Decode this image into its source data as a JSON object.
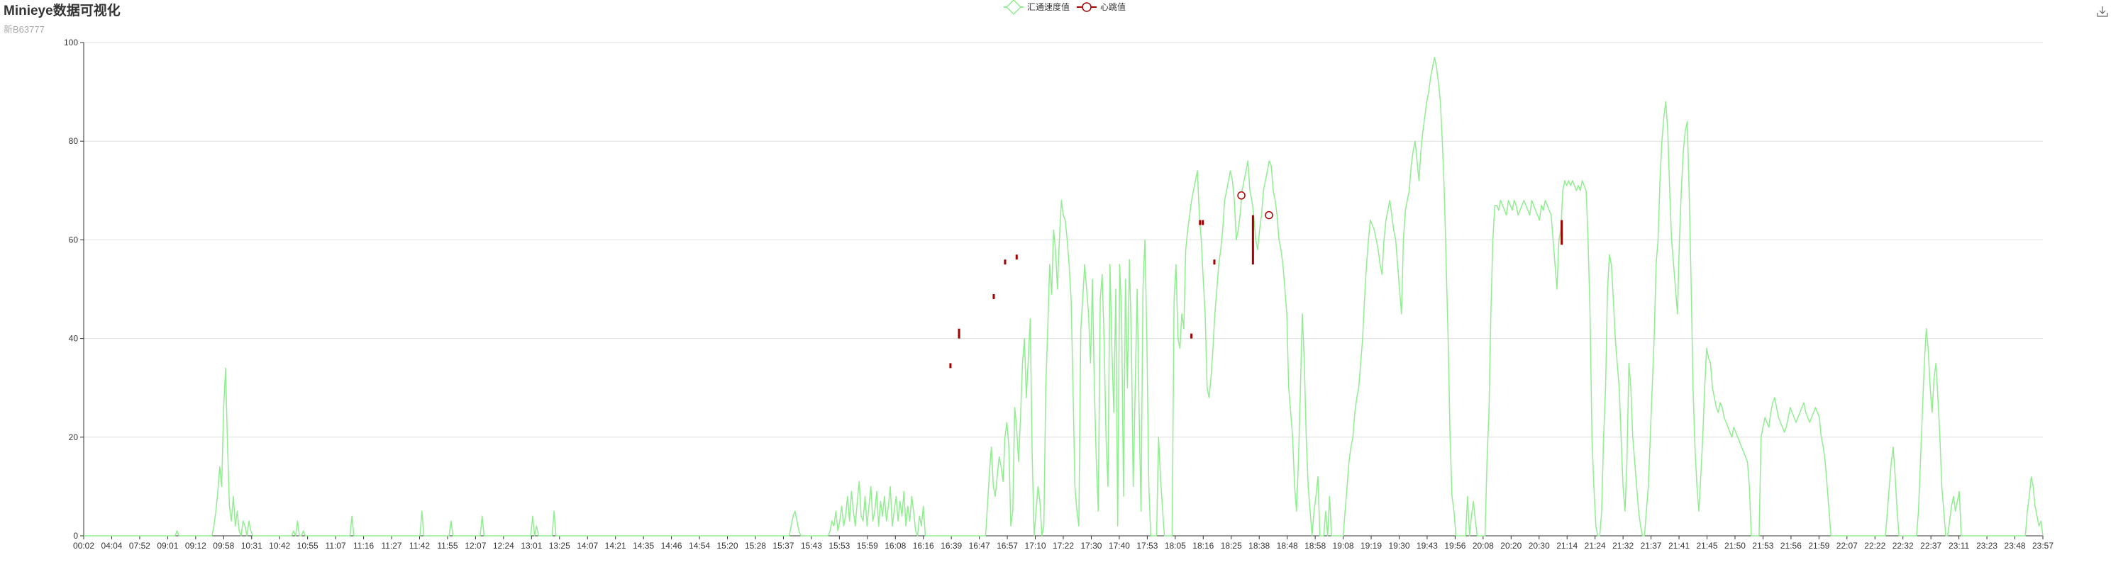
{
  "header": {
    "title": "Minieye数据可视化",
    "subtitle": "新B63777"
  },
  "toolbox": {
    "icon": "download-icon"
  },
  "colors": {
    "speed": "#90ee90",
    "heartbeat": "#a40000",
    "grid": "#e0e0e0",
    "axis": "#333333"
  },
  "chart_data": {
    "type": "line",
    "title": "Minieye数据可视化",
    "subtitle": "新B63777",
    "legend": [
      "汇通速度值",
      "心跳值"
    ],
    "legend_position": "top-center",
    "grid": true,
    "ylim": [
      0,
      100
    ],
    "yticks": [
      0,
      20,
      40,
      60,
      80,
      100
    ],
    "x_tick_labels": [
      "00:02",
      "04:04",
      "07:52",
      "09:01",
      "09:12",
      "09:58",
      "10:31",
      "10:42",
      "10:55",
      "11:07",
      "11:16",
      "11:27",
      "11:42",
      "11:55",
      "12:07",
      "12:24",
      "13:01",
      "13:25",
      "14:07",
      "14:21",
      "14:35",
      "14:46",
      "14:54",
      "15:20",
      "15:28",
      "15:37",
      "15:43",
      "15:53",
      "15:59",
      "16:08",
      "16:16",
      "16:39",
      "16:47",
      "16:57",
      "17:10",
      "17:22",
      "17:30",
      "17:40",
      "17:53",
      "18:05",
      "18:16",
      "18:25",
      "18:38",
      "18:48",
      "18:58",
      "19:08",
      "19:19",
      "19:30",
      "19:43",
      "19:56",
      "20:08",
      "20:20",
      "20:30",
      "21:14",
      "21:24",
      "21:32",
      "21:37",
      "21:41",
      "21:45",
      "21:50",
      "21:53",
      "21:56",
      "21:59",
      "22:07",
      "22:22",
      "22:32",
      "22:37",
      "23:11",
      "23:23",
      "23:48",
      "23:57"
    ],
    "series": [
      {
        "name": "汇通速度值",
        "type": "line",
        "values": [
          0,
          0,
          0,
          0,
          0,
          0,
          0,
          0,
          0,
          0,
          0,
          0,
          0,
          0,
          0,
          0,
          0,
          0,
          0,
          0,
          0,
          0,
          0,
          0,
          0,
          0,
          0,
          0,
          0,
          0,
          0,
          0,
          0,
          0,
          0,
          0,
          0,
          0,
          0,
          0,
          0,
          0,
          0,
          0,
          0,
          0,
          0,
          0,
          1,
          0,
          0,
          0,
          0,
          0,
          0,
          0,
          0,
          0,
          0,
          0,
          0,
          0,
          0,
          0,
          0,
          0,
          0,
          2,
          5,
          9,
          14,
          10,
          26,
          34,
          18,
          6,
          3,
          8,
          2,
          5,
          1,
          0,
          3,
          2,
          0,
          3,
          1,
          0,
          0,
          0,
          0,
          0,
          0,
          0,
          0,
          0,
          0,
          0,
          0,
          0,
          0,
          0,
          0,
          0,
          0,
          0,
          0,
          0,
          1,
          0,
          3,
          0,
          0,
          1,
          0,
          0,
          0,
          0,
          0,
          0,
          0,
          0,
          0,
          0,
          0,
          0,
          0,
          0,
          0,
          0,
          0,
          0,
          0,
          0,
          0,
          0,
          0,
          0,
          4,
          0,
          0,
          0,
          0,
          0,
          0,
          0,
          0,
          0,
          0,
          0,
          0,
          0,
          0,
          0,
          0,
          0,
          0,
          0,
          0,
          0,
          0,
          0,
          0,
          0,
          0,
          0,
          0,
          0,
          0,
          0,
          0,
          0,
          0,
          0,
          5,
          0,
          0,
          0,
          0,
          0,
          0,
          0,
          0,
          0,
          0,
          0,
          0,
          0,
          0,
          3,
          0,
          0,
          0,
          0,
          0,
          0,
          0,
          0,
          0,
          0,
          0,
          0,
          0,
          0,
          0,
          4,
          0,
          0,
          0,
          0,
          0,
          0,
          0,
          0,
          0,
          0,
          0,
          0,
          0,
          0,
          0,
          0,
          0,
          0,
          0,
          0,
          0,
          0,
          0,
          0,
          0,
          4,
          0,
          2,
          0,
          0,
          0,
          0,
          0,
          0,
          0,
          0,
          5,
          0,
          0,
          0,
          0,
          0,
          0,
          0,
          0,
          0,
          0,
          0,
          0,
          0,
          0,
          0,
          0,
          0,
          0,
          0,
          0,
          0,
          0,
          0,
          0,
          0,
          0,
          0,
          0,
          0,
          0,
          0,
          0,
          0,
          0,
          0,
          0,
          0,
          0,
          0,
          0,
          0,
          0,
          0,
          0,
          0,
          0,
          0,
          0,
          0,
          0,
          0,
          0,
          0,
          0,
          0,
          0,
          0,
          0,
          0,
          0,
          0,
          0,
          0,
          0,
          0,
          0,
          0,
          0,
          0,
          0,
          0,
          0,
          0,
          0,
          0,
          0,
          0,
          0,
          0,
          0,
          0,
          0,
          0,
          0,
          0,
          0,
          0,
          0,
          0,
          0,
          0,
          0,
          0,
          0,
          0,
          0,
          0,
          0,
          0,
          0,
          0,
          0,
          0,
          0,
          0,
          0,
          0,
          0,
          0,
          0,
          0,
          0,
          0,
          0,
          0,
          0,
          0,
          0,
          0,
          0,
          0,
          2,
          4,
          5,
          3,
          1,
          0,
          0,
          0,
          0,
          0,
          0,
          0,
          0,
          0,
          0,
          0,
          0,
          0,
          0,
          0,
          1,
          3,
          2,
          5,
          1,
          3,
          6,
          2,
          4,
          8,
          3,
          9,
          5,
          2,
          7,
          11,
          4,
          3,
          8,
          2,
          6,
          10,
          3,
          5,
          9,
          2,
          7,
          4,
          8,
          3,
          6,
          10,
          2,
          5,
          8,
          3,
          7,
          4,
          9,
          2,
          6,
          3,
          8,
          5,
          1,
          0,
          4,
          2,
          6,
          0,
          0,
          0,
          0,
          0,
          0,
          0,
          0,
          0,
          0,
          0,
          0,
          0,
          0,
          0,
          0,
          0,
          0,
          0,
          0,
          0,
          0,
          0,
          0,
          0,
          0,
          0,
          0,
          0,
          0,
          0,
          0,
          6,
          13,
          18,
          10,
          8,
          12,
          16,
          14,
          11,
          20,
          23,
          18,
          2,
          5,
          26,
          22,
          15,
          24,
          35,
          40,
          28,
          36,
          44,
          16,
          0,
          5,
          10,
          7,
          0,
          2,
          30,
          42,
          55,
          49,
          62,
          58,
          50,
          60,
          68,
          65,
          64,
          60,
          55,
          48,
          30,
          10,
          5,
          2,
          42,
          48,
          55,
          50,
          45,
          35,
          52,
          30,
          15,
          5,
          48,
          53,
          40,
          20,
          10,
          55,
          38,
          25,
          50,
          2,
          55,
          45,
          8,
          52,
          30,
          56,
          40,
          10,
          30,
          50,
          25,
          5,
          50,
          60,
          40,
          10,
          0,
          0,
          0,
          0,
          20,
          12,
          6,
          0,
          0,
          0,
          0,
          0,
          48,
          55,
          40,
          38,
          45,
          42,
          58,
          62,
          65,
          68,
          70,
          72,
          74,
          65,
          60,
          52,
          45,
          30,
          28,
          32,
          38,
          45,
          50,
          55,
          58,
          62,
          68,
          70,
          72,
          74,
          72,
          68,
          60,
          62,
          65,
          70,
          72,
          74,
          76,
          70,
          68,
          65,
          60,
          58,
          62,
          65,
          70,
          72,
          74,
          76,
          75,
          70,
          68,
          65,
          60,
          58,
          55,
          50,
          45,
          30,
          25,
          20,
          10,
          5,
          15,
          30,
          45,
          35,
          20,
          10,
          5,
          0,
          5,
          8,
          12,
          0,
          0,
          0,
          5,
          0,
          8,
          0,
          0,
          0,
          0,
          0,
          0,
          0,
          5,
          10,
          15,
          18,
          20,
          25,
          28,
          30,
          35,
          40,
          48,
          55,
          60,
          64,
          63,
          62,
          60,
          58,
          55,
          53,
          60,
          64,
          66,
          68,
          65,
          62,
          60,
          55,
          50,
          45,
          60,
          66,
          68,
          70,
          75,
          78,
          80,
          76,
          72,
          78,
          82,
          85,
          88,
          90,
          93,
          95,
          97,
          95,
          92,
          88,
          80,
          70,
          55,
          40,
          20,
          8,
          5,
          0,
          0,
          0,
          0,
          0,
          0,
          8,
          0,
          4,
          7,
          3,
          0,
          0,
          0,
          0,
          0,
          15,
          25,
          45,
          60,
          67,
          67,
          66,
          68,
          67,
          66,
          65,
          68,
          67,
          66,
          68,
          67,
          65,
          66,
          67,
          68,
          67,
          66,
          65,
          68,
          67,
          66,
          65,
          64,
          67,
          66,
          68,
          67,
          66,
          65,
          60,
          55,
          50,
          60,
          62,
          70,
          72,
          71,
          72,
          71,
          72,
          71,
          70,
          71,
          70,
          72,
          71,
          70,
          60,
          45,
          20,
          10,
          2,
          0,
          0,
          5,
          20,
          30,
          50,
          57,
          55,
          48,
          40,
          35,
          30,
          20,
          10,
          5,
          15,
          35,
          30,
          20,
          15,
          10,
          5,
          2,
          0,
          0,
          5,
          10,
          20,
          30,
          40,
          55,
          60,
          72,
          80,
          85,
          88,
          82,
          70,
          60,
          55,
          50,
          45,
          60,
          70,
          78,
          82,
          84,
          70,
          52,
          30,
          18,
          10,
          5,
          12,
          20,
          30,
          38,
          36,
          35,
          30,
          28,
          26,
          25,
          27,
          26,
          24,
          23,
          22,
          21,
          20,
          22,
          21,
          20,
          19,
          18,
          17,
          16,
          15,
          10,
          0,
          0,
          0,
          0,
          0,
          20,
          22,
          24,
          23,
          22,
          25,
          27,
          28,
          26,
          24,
          23,
          22,
          21,
          22,
          24,
          26,
          25,
          24,
          23,
          24,
          25,
          26,
          27,
          25,
          24,
          23,
          24,
          25,
          26,
          25,
          24,
          20,
          18,
          15,
          10,
          5,
          0,
          0,
          0,
          0,
          0,
          0,
          0,
          0,
          0,
          0,
          0,
          0,
          0,
          0,
          0,
          0,
          0,
          0,
          0,
          0,
          0,
          0,
          0,
          0,
          0,
          0,
          0,
          0,
          0,
          5,
          10,
          15,
          18,
          12,
          5,
          0,
          0,
          0,
          0,
          0,
          0,
          0,
          0,
          0,
          0,
          5,
          15,
          25,
          35,
          42,
          38,
          30,
          25,
          32,
          35,
          28,
          20,
          10,
          5,
          0,
          0,
          3,
          6,
          8,
          5,
          7,
          9,
          0,
          0,
          0,
          0,
          0,
          0,
          0,
          0,
          0,
          0,
          0,
          0,
          0,
          0,
          0,
          0,
          0,
          0,
          0,
          0,
          0,
          0,
          0,
          0,
          0,
          0,
          0,
          0,
          0,
          0,
          0,
          0,
          0,
          0,
          5,
          8,
          12,
          10,
          6,
          4,
          2,
          3,
          0
        ]
      },
      {
        "name": "心跳值",
        "type": "candlestick-markers",
        "bars": [
          {
            "x": 0.4424,
            "low": 34,
            "high": 35
          },
          {
            "x": 0.4468,
            "low": 40,
            "high": 42
          },
          {
            "x": 0.4645,
            "low": 48,
            "high": 49
          },
          {
            "x": 0.4703,
            "low": 55,
            "high": 56
          },
          {
            "x": 0.4762,
            "low": 56,
            "high": 57
          },
          {
            "x": 0.5654,
            "low": 40,
            "high": 41
          },
          {
            "x": 0.5698,
            "low": 63,
            "high": 64
          },
          {
            "x": 0.5712,
            "low": 63,
            "high": 64
          },
          {
            "x": 0.5771,
            "low": 55,
            "high": 56
          },
          {
            "x": 0.5968,
            "low": 55,
            "high": 65
          },
          {
            "x": 0.7544,
            "low": 59,
            "high": 64
          }
        ],
        "points": [
          {
            "x": 0.5909,
            "y": 69
          },
          {
            "x": 0.605,
            "y": 65
          }
        ]
      }
    ]
  }
}
